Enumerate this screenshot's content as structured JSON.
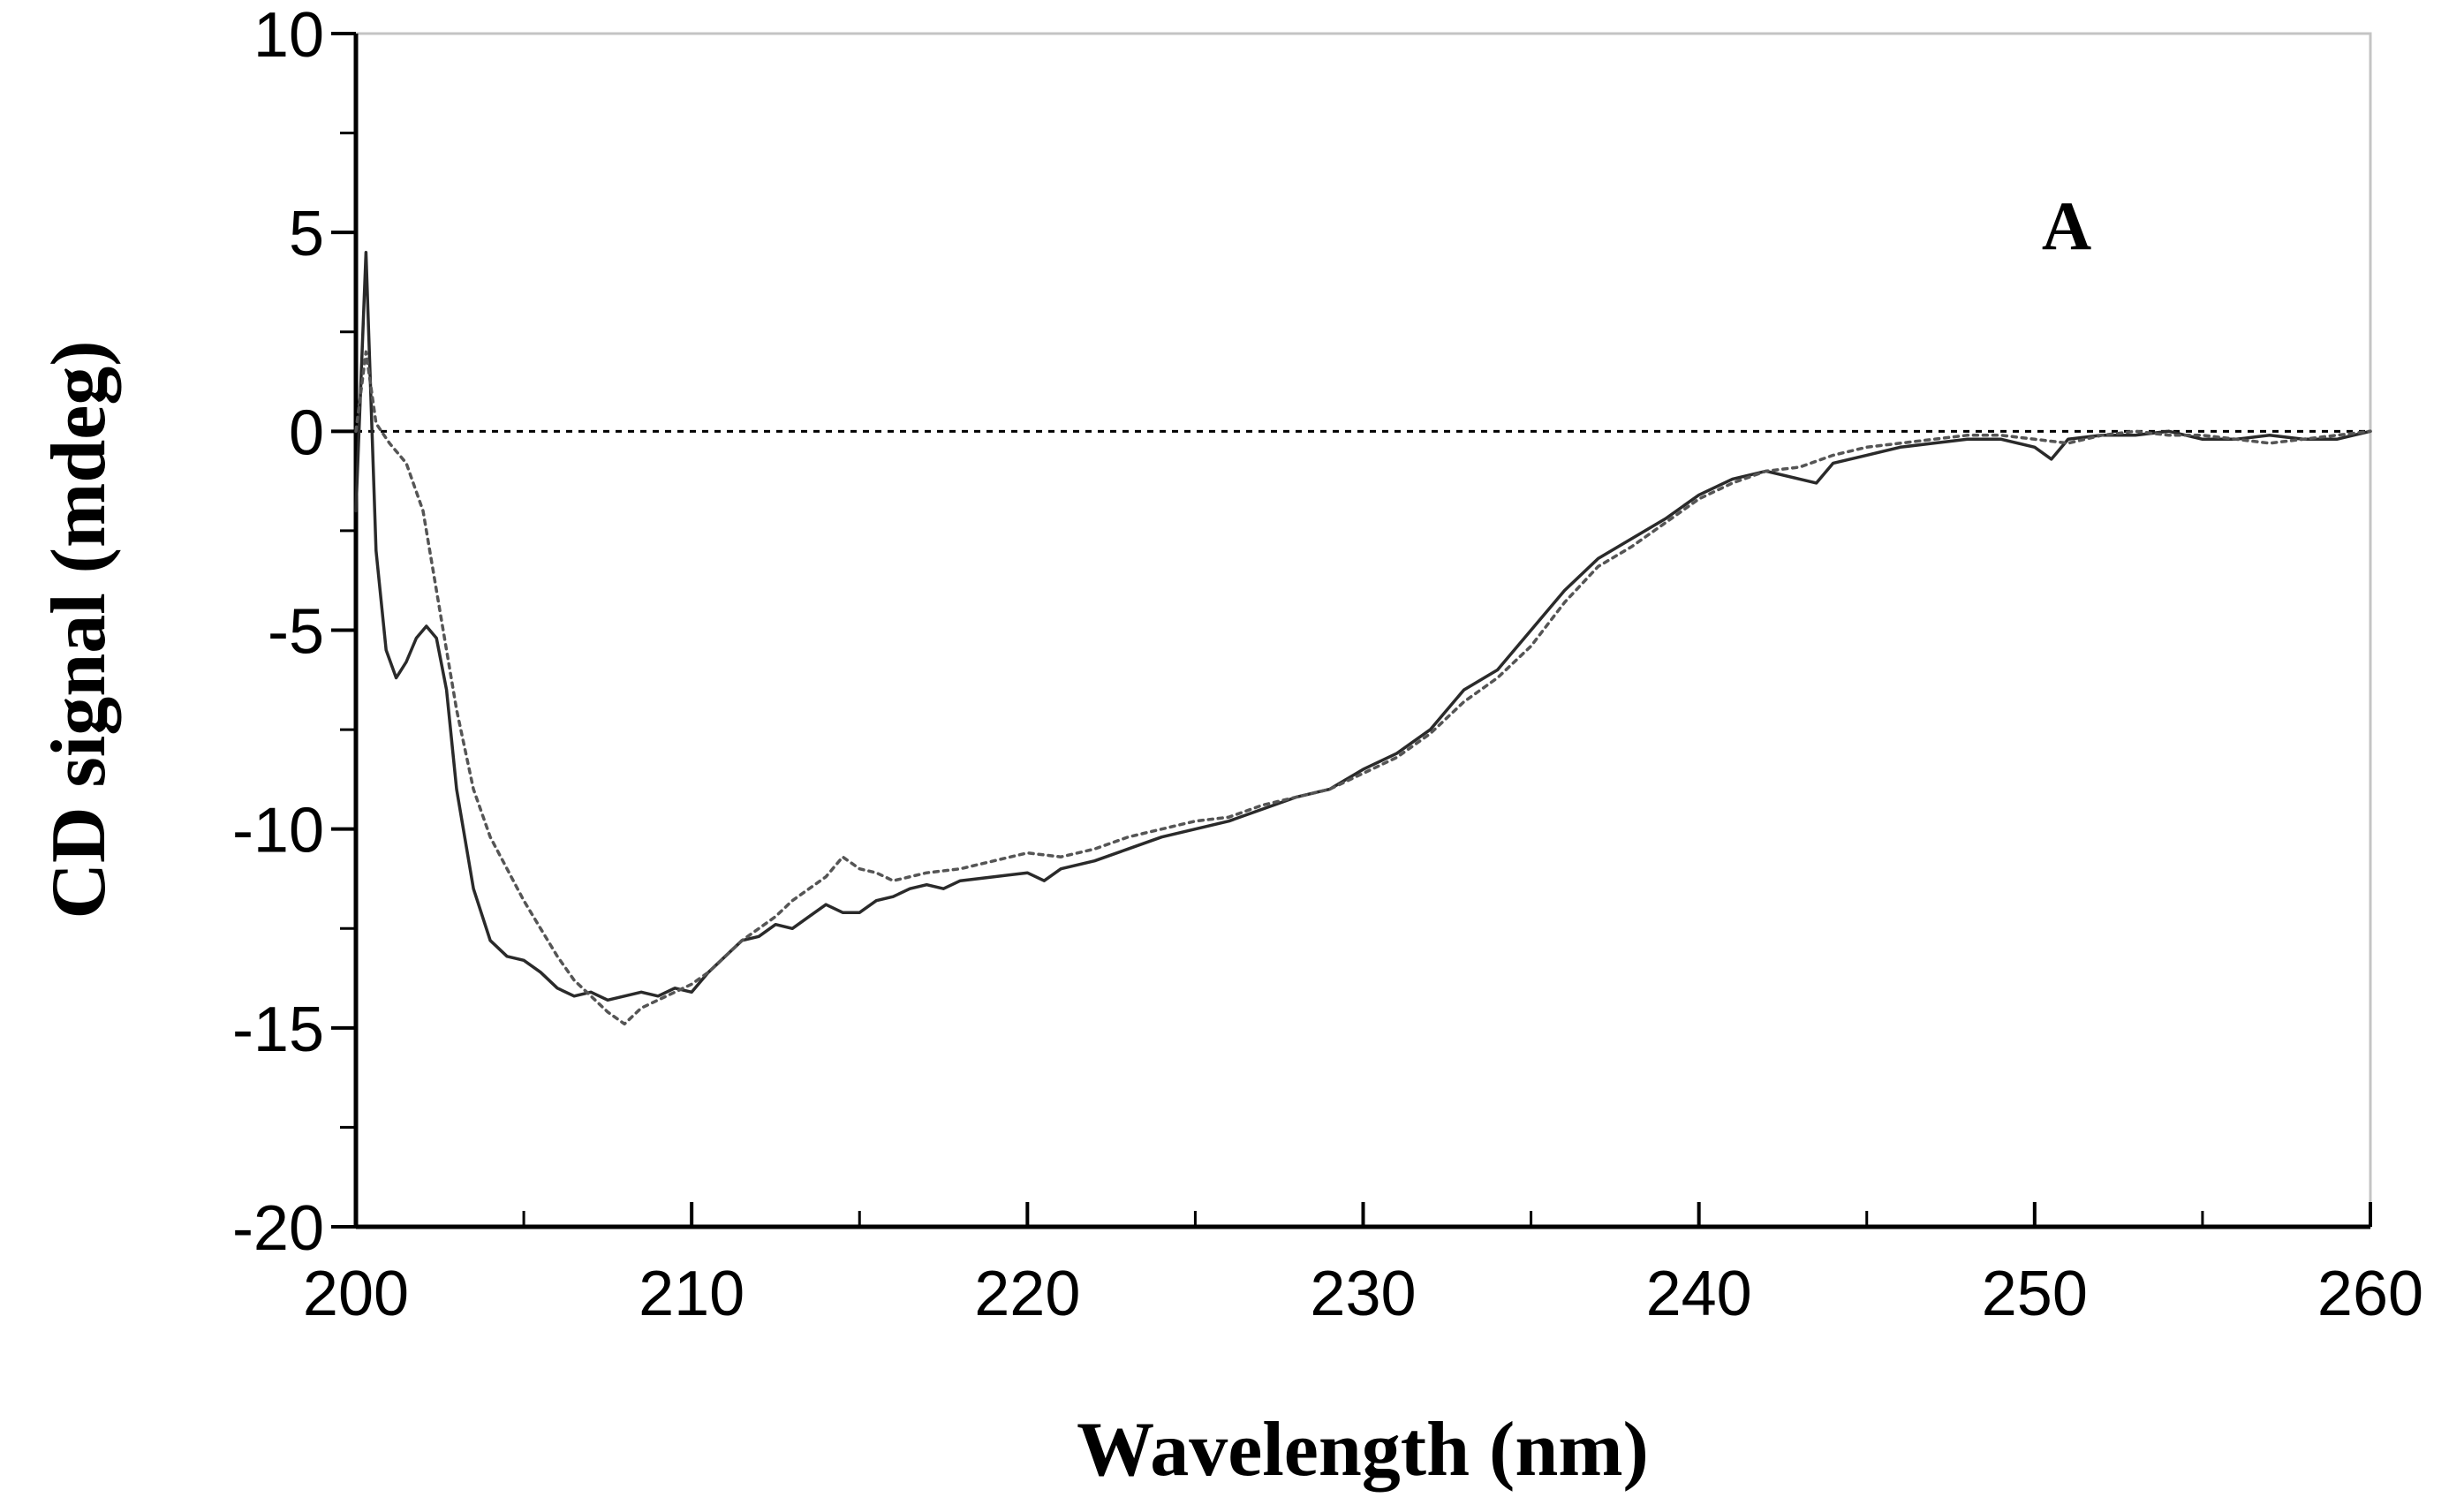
{
  "chart_data": {
    "type": "line",
    "xlabel": "Wavelength (nm)",
    "ylabel": "CD signal (mdeg)",
    "annotation": "A",
    "xlim": [
      200,
      260
    ],
    "ylim": [
      -20,
      10
    ],
    "xticks": [
      200,
      210,
      220,
      230,
      240,
      250,
      260
    ],
    "yticks": [
      10,
      5,
      0,
      -5,
      -10,
      -15,
      -20
    ],
    "xtick_labels": [
      "200",
      "210",
      "220",
      "230",
      "240",
      "250",
      "260"
    ],
    "ytick_labels": [
      "10",
      "5",
      "0",
      "-5",
      "-10",
      "-15",
      "-20"
    ],
    "grid": false,
    "series": [
      {
        "style": "solid",
        "color": "#2a2a2a",
        "x": [
          200.0,
          200.3,
          200.6,
          200.9,
          201.2,
          201.5,
          201.8,
          202.1,
          202.4,
          202.7,
          203.0,
          203.5,
          204.0,
          204.5,
          205.0,
          205.5,
          206.0,
          206.5,
          207.0,
          207.5,
          208.0,
          208.5,
          209.0,
          209.5,
          210.0,
          210.5,
          211.0,
          211.5,
          212.0,
          212.5,
          213.0,
          213.5,
          214.0,
          214.5,
          215.0,
          215.5,
          216.0,
          216.5,
          217.0,
          217.5,
          218.0,
          219.0,
          220.0,
          220.5,
          221.0,
          222.0,
          223.0,
          224.0,
          225.0,
          226.0,
          227.0,
          228.0,
          229.0,
          230.0,
          231.0,
          232.0,
          233.0,
          234.0,
          235.0,
          236.0,
          237.0,
          238.0,
          239.0,
          240.0,
          241.0,
          242.0,
          243.0,
          243.5,
          244.0,
          245.0,
          246.0,
          247.0,
          248.0,
          249.0,
          250.0,
          250.5,
          251.0,
          252.0,
          253.0,
          254.0,
          255.0,
          256.0,
          257.0,
          258.0,
          259.0,
          260.0
        ],
        "y": [
          -2.0,
          4.5,
          -3.0,
          -5.5,
          -6.2,
          -5.8,
          -5.2,
          -4.9,
          -5.2,
          -6.5,
          -9.0,
          -11.5,
          -12.8,
          -13.2,
          -13.3,
          -13.6,
          -14.0,
          -14.2,
          -14.1,
          -14.3,
          -14.2,
          -14.1,
          -14.2,
          -14.0,
          -14.1,
          -13.6,
          -13.2,
          -12.8,
          -12.7,
          -12.4,
          -12.5,
          -12.2,
          -11.9,
          -12.1,
          -12.1,
          -11.8,
          -11.7,
          -11.5,
          -11.4,
          -11.5,
          -11.3,
          -11.2,
          -11.1,
          -11.3,
          -11.0,
          -10.8,
          -10.5,
          -10.2,
          -10.0,
          -9.8,
          -9.5,
          -9.2,
          -9.0,
          -8.5,
          -8.1,
          -7.5,
          -6.5,
          -6.0,
          -5.0,
          -4.0,
          -3.2,
          -2.7,
          -2.2,
          -1.6,
          -1.2,
          -1.0,
          -1.2,
          -1.3,
          -0.8,
          -0.6,
          -0.4,
          -0.3,
          -0.2,
          -0.2,
          -0.4,
          -0.7,
          -0.2,
          -0.1,
          -0.1,
          0.0,
          -0.2,
          -0.2,
          -0.1,
          -0.2,
          -0.2,
          0.0
        ]
      },
      {
        "style": "dotted",
        "color": "#555555",
        "x": [
          200.0,
          200.3,
          200.6,
          201.0,
          201.5,
          202.0,
          202.5,
          203.0,
          203.5,
          204.0,
          204.5,
          205.0,
          205.5,
          206.0,
          206.5,
          207.0,
          207.5,
          208.0,
          208.5,
          209.0,
          209.5,
          210.0,
          210.5,
          211.0,
          211.5,
          212.0,
          212.5,
          213.0,
          213.5,
          214.0,
          214.5,
          215.0,
          215.5,
          216.0,
          216.5,
          217.0,
          218.0,
          219.0,
          220.0,
          221.0,
          222.0,
          223.0,
          224.0,
          225.0,
          226.0,
          227.0,
          228.0,
          229.0,
          230.0,
          231.0,
          232.0,
          233.0,
          234.0,
          235.0,
          236.0,
          237.0,
          238.0,
          239.0,
          240.0,
          241.0,
          242.0,
          243.0,
          244.0,
          245.0,
          246.0,
          247.0,
          248.0,
          249.0,
          250.0,
          251.0,
          252.0,
          253.0,
          254.0,
          255.0,
          256.0,
          257.0,
          258.0,
          259.0,
          260.0
        ],
        "y": [
          0.0,
          2.0,
          0.2,
          -0.3,
          -0.8,
          -2.0,
          -4.5,
          -7.0,
          -9.0,
          -10.2,
          -11.0,
          -11.8,
          -12.5,
          -13.2,
          -13.8,
          -14.2,
          -14.6,
          -14.9,
          -14.5,
          -14.3,
          -14.1,
          -13.9,
          -13.6,
          -13.2,
          -12.8,
          -12.5,
          -12.2,
          -11.8,
          -11.5,
          -11.2,
          -10.7,
          -11.0,
          -11.1,
          -11.3,
          -11.2,
          -11.1,
          -11.0,
          -10.8,
          -10.6,
          -10.7,
          -10.5,
          -10.2,
          -10.0,
          -9.8,
          -9.7,
          -9.4,
          -9.2,
          -9.0,
          -8.6,
          -8.2,
          -7.6,
          -6.8,
          -6.2,
          -5.4,
          -4.3,
          -3.4,
          -2.9,
          -2.3,
          -1.7,
          -1.3,
          -1.0,
          -0.9,
          -0.6,
          -0.4,
          -0.3,
          -0.2,
          -0.1,
          -0.1,
          -0.2,
          -0.3,
          -0.1,
          0.0,
          -0.1,
          -0.1,
          -0.2,
          -0.3,
          -0.2,
          -0.1,
          0.0
        ]
      }
    ],
    "reference_line": {
      "y": 0,
      "style": "dotted"
    }
  }
}
